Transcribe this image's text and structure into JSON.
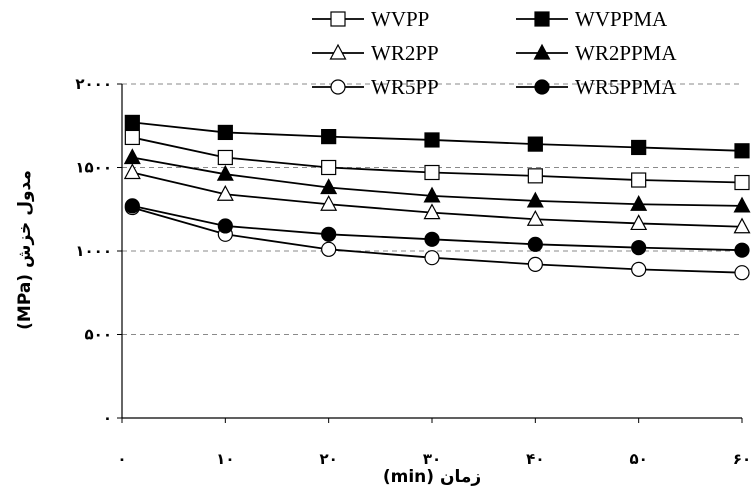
{
  "chart_data": {
    "type": "line",
    "title": "",
    "xlabel": "زمان (min)",
    "ylabel": "مدول خزش (MPa)",
    "x": [
      1,
      10,
      20,
      30,
      40,
      50,
      60
    ],
    "xticks": [
      0,
      10,
      20,
      30,
      40,
      50,
      60
    ],
    "xtick_labels": [
      "۰",
      "۱۰",
      "۲۰",
      "۳۰",
      "۴۰",
      "۵۰",
      "۶۰"
    ],
    "xlim": [
      0,
      60
    ],
    "yticks": [
      0,
      500,
      1000,
      1500,
      2000
    ],
    "ytick_labels": [
      "۰",
      "۵۰۰",
      "۱۰۰۰",
      "۱۵۰۰",
      "۲۰۰۰"
    ],
    "ylim": [
      0,
      2000
    ],
    "grid": "horizontal dashed",
    "legend_position": "top",
    "series": [
      {
        "name": "WVPP",
        "marker": "square-open",
        "values": [
          1680,
          1560,
          1500,
          1470,
          1450,
          1425,
          1410
        ]
      },
      {
        "name": "WVPPMA",
        "marker": "square-filled",
        "values": [
          1770,
          1710,
          1685,
          1665,
          1640,
          1620,
          1600
        ]
      },
      {
        "name": "WR2PP",
        "marker": "triangle-open",
        "values": [
          1470,
          1340,
          1280,
          1230,
          1190,
          1165,
          1145
        ]
      },
      {
        "name": "WR2PPMA",
        "marker": "triangle-filled",
        "values": [
          1560,
          1460,
          1380,
          1330,
          1300,
          1280,
          1270
        ]
      },
      {
        "name": "WR5PP",
        "marker": "circle-open",
        "values": [
          1260,
          1100,
          1010,
          960,
          920,
          890,
          870
        ]
      },
      {
        "name": "WR5PPMA",
        "marker": "circle-filled",
        "values": [
          1270,
          1150,
          1100,
          1070,
          1040,
          1020,
          1005
        ]
      }
    ]
  }
}
